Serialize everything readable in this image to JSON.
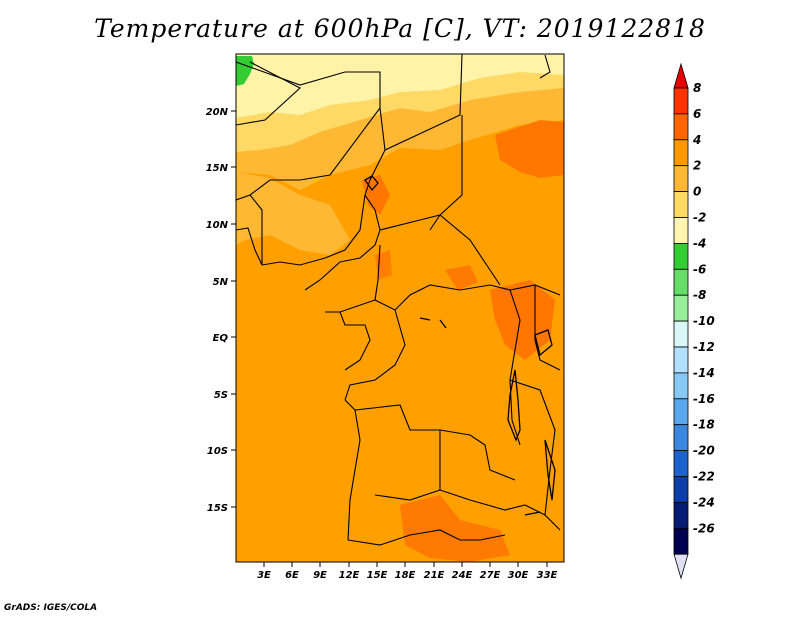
{
  "title": "Temperature at 600hPa [C], VT: 2019122818",
  "credit": "GrADS: IGES/COLA",
  "lat_ticks": [
    "20N",
    "15N",
    "10N",
    "5N",
    "EQ",
    "5S",
    "10S",
    "15S"
  ],
  "lon_ticks": [
    "3E",
    "6E",
    "9E",
    "12E",
    "15E",
    "18E",
    "21E",
    "24E",
    "27E",
    "30E",
    "33E"
  ],
  "colorbar": {
    "labels": [
      "8",
      "6",
      "4",
      "2",
      "0",
      "-2",
      "-4",
      "-6",
      "-8",
      "-10",
      "-12",
      "-14",
      "-16",
      "-18",
      "-20",
      "-22",
      "-24",
      "-26"
    ],
    "colors": [
      "#e60000",
      "#ff3300",
      "#ff6600",
      "#ff9900",
      "#ffb833",
      "#ffd966",
      "#fff5b0",
      "#33cc33",
      "#66dd66",
      "#99ee99",
      "#d9f7f7",
      "#b3e0ff",
      "#88c8f5",
      "#5aa8ec",
      "#3a88e0",
      "#1e63cc",
      "#0d3fa8",
      "#071d75",
      "#000050",
      "#e0e0f5"
    ]
  },
  "fields": {
    "light_yellow": "#fff3a8",
    "yellow": "#ffd966",
    "light_orange": "#ffb833",
    "orange": "#ffa000",
    "dark_orange": "#ff7000",
    "green": "#33cc33"
  }
}
